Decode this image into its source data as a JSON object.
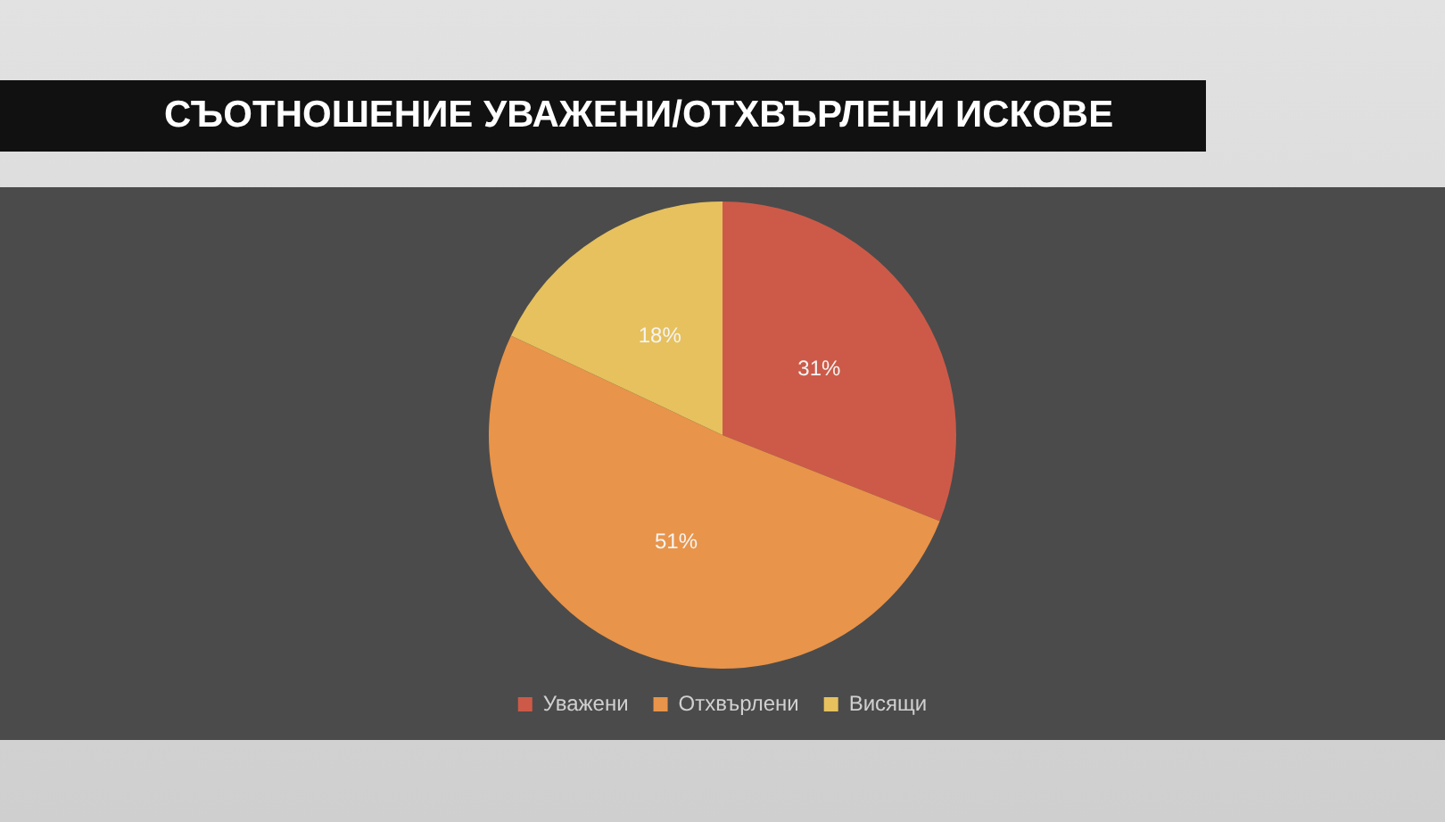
{
  "chart_data": {
    "type": "pie",
    "title": "СЪОТНОШЕНИЕ УВАЖЕНИ/ОТХВЪРЛЕНИ ИСКОВЕ",
    "categories": [
      "Уважени",
      "Отхвърлени",
      "Висящи"
    ],
    "values": [
      31,
      51,
      18
    ],
    "value_labels": [
      "31%",
      "51%",
      "18%"
    ],
    "colors": [
      "#cd5a48",
      "#e8944a",
      "#e6c15e"
    ],
    "legend": "bottom"
  }
}
